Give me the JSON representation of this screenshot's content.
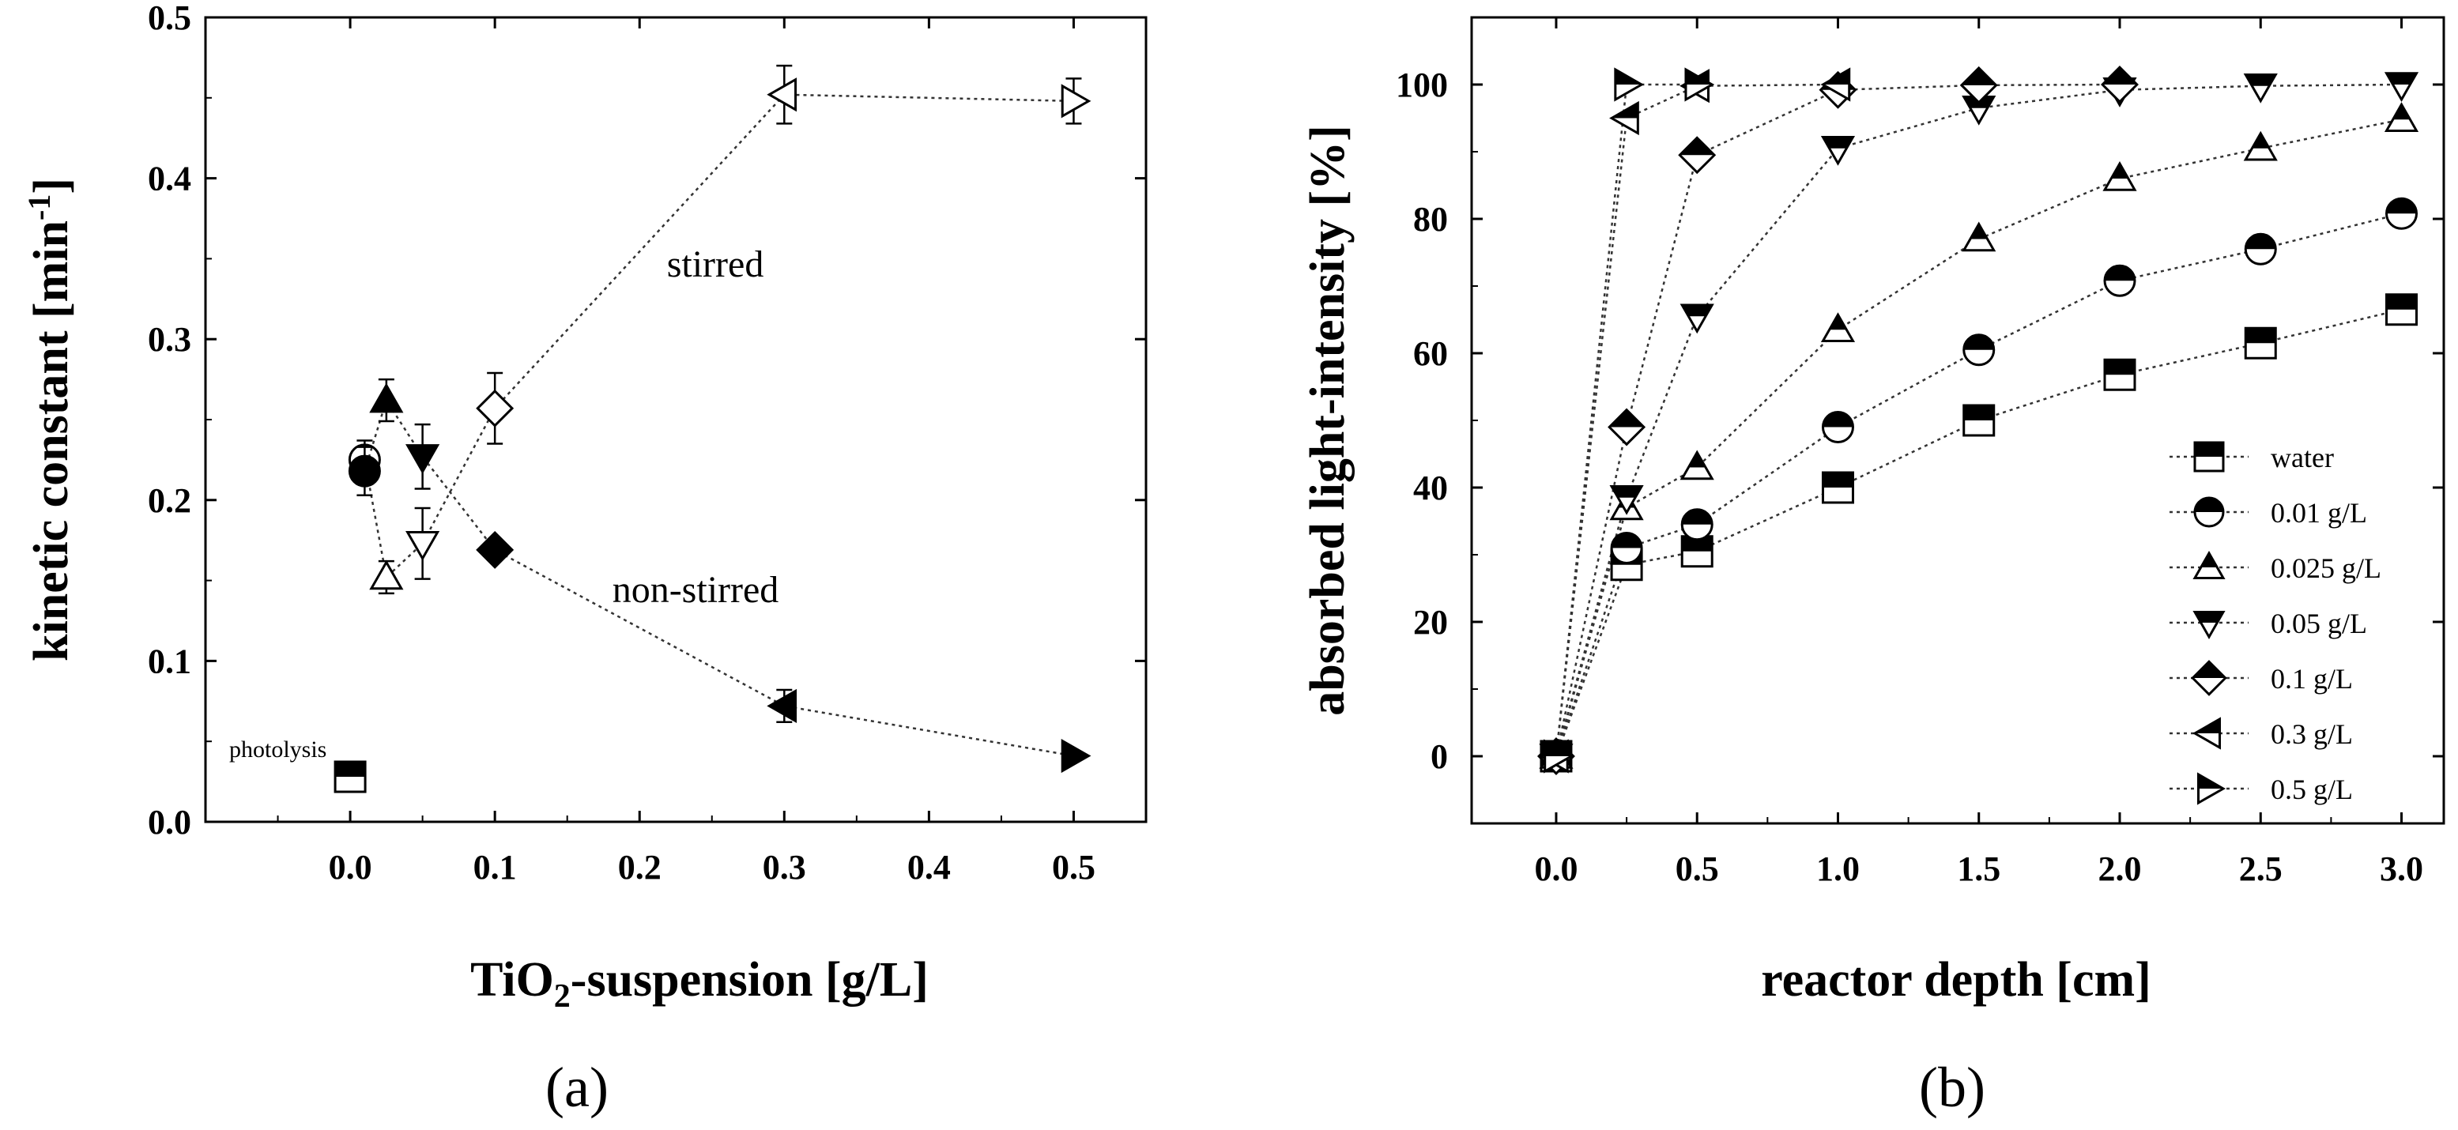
{
  "chart_data": [
    {
      "type": "scatter",
      "panel_label": "(a)",
      "xlabel_main": "TiO",
      "xlabel_sub": "2",
      "xlabel_rest": "-suspension [g/L]",
      "ylabel_main": "kinetic constant [min",
      "ylabel_sup": "-1",
      "ylabel_end": "]",
      "xlim": [
        -0.1,
        0.55
      ],
      "ylim": [
        0.0,
        0.5
      ],
      "xticks": [
        "0.0",
        "0.1",
        "0.2",
        "0.3",
        "0.4",
        "0.5"
      ],
      "yticks": [
        "0.0",
        "0.1",
        "0.2",
        "0.3",
        "0.4",
        "0.5"
      ],
      "annotations": {
        "stirred": "stirred",
        "non_stirred": "non-stirred",
        "photolysis": "photolysis"
      },
      "series": [
        {
          "name": "photolysis",
          "marker": "square",
          "fill": "half",
          "points": [
            {
              "x": 0.0,
              "y": 0.028,
              "err": 0.005
            }
          ]
        },
        {
          "name": "stirred",
          "line": true,
          "points": [
            {
              "x": 0.01,
              "y": 0.225,
              "err": 0.012,
              "marker": "circle",
              "fill": "open"
            },
            {
              "x": 0.025,
              "y": 0.152,
              "err": 0.01,
              "marker": "triangle-up",
              "fill": "open"
            },
            {
              "x": 0.05,
              "y": 0.173,
              "err": 0.022,
              "marker": "triangle-down",
              "fill": "open"
            },
            {
              "x": 0.1,
              "y": 0.257,
              "err": 0.022,
              "marker": "diamond",
              "fill": "open"
            },
            {
              "x": 0.3,
              "y": 0.452,
              "err": 0.018,
              "marker": "triangle-left",
              "fill": "open"
            },
            {
              "x": 0.5,
              "y": 0.448,
              "err": 0.014,
              "marker": "triangle-right",
              "fill": "open"
            }
          ]
        },
        {
          "name": "non-stirred",
          "line": true,
          "points": [
            {
              "x": 0.01,
              "y": 0.218,
              "err": 0.015,
              "marker": "circle",
              "fill": "solid"
            },
            {
              "x": 0.025,
              "y": 0.262,
              "err": 0.013,
              "marker": "triangle-up",
              "fill": "solid"
            },
            {
              "x": 0.05,
              "y": 0.227,
              "err": 0.02,
              "marker": "triangle-down",
              "fill": "solid"
            },
            {
              "x": 0.1,
              "y": 0.169,
              "err": 0.0,
              "marker": "diamond",
              "fill": "solid"
            },
            {
              "x": 0.3,
              "y": 0.072,
              "err": 0.01,
              "marker": "triangle-left",
              "fill": "solid"
            },
            {
              "x": 0.5,
              "y": 0.041,
              "err": 0.0,
              "marker": "triangle-right",
              "fill": "solid"
            }
          ]
        }
      ]
    },
    {
      "type": "line",
      "panel_label": "(b)",
      "xlabel": "reactor depth [cm]",
      "ylabel": "absorbed light-intensity [%]",
      "xlim": [
        -0.3,
        3.15
      ],
      "ylim": [
        -10,
        110
      ],
      "xticks": [
        "0.0",
        "0.5",
        "1.0",
        "1.5",
        "2.0",
        "2.5",
        "3.0"
      ],
      "yticks": [
        "0",
        "20",
        "40",
        "60",
        "80",
        "100"
      ],
      "legend_position": "bottom-right",
      "series": [
        {
          "name": "water",
          "marker": "square",
          "fill": "half",
          "x": [
            0.0,
            0.25,
            0.5,
            1.0,
            1.5,
            2.0,
            2.5,
            3.0
          ],
          "values": [
            0,
            28.5,
            30.5,
            40.0,
            50.0,
            56.8,
            61.5,
            66.5
          ]
        },
        {
          "name": "0.01 g/L",
          "marker": "circle",
          "fill": "half",
          "x": [
            0.0,
            0.25,
            0.5,
            1.0,
            1.5,
            2.0,
            2.5,
            3.0
          ],
          "values": [
            0,
            31.0,
            34.5,
            49.0,
            60.5,
            70.8,
            75.5,
            80.8
          ]
        },
        {
          "name": "0.025 g/L",
          "marker": "triangle-up",
          "fill": "half",
          "x": [
            0.0,
            0.25,
            0.5,
            1.0,
            1.5,
            2.0,
            2.5,
            3.0
          ],
          "values": [
            0,
            37.0,
            43.0,
            63.5,
            77.0,
            86.0,
            90.5,
            94.8
          ]
        },
        {
          "name": "0.05 g/L",
          "marker": "triangle-down",
          "fill": "half",
          "x": [
            0.0,
            0.25,
            0.5,
            1.0,
            1.5,
            2.0,
            2.5,
            3.0
          ],
          "values": [
            0,
            38.5,
            65.5,
            90.5,
            96.5,
            99.2,
            99.8,
            100.0
          ]
        },
        {
          "name": "0.1 g/L",
          "marker": "diamond",
          "fill": "half",
          "x": [
            0.0,
            0.25,
            0.5,
            1.0,
            1.5,
            2.0
          ],
          "values": [
            0,
            49.0,
            89.5,
            99.2,
            99.9,
            100.0
          ]
        },
        {
          "name": "0.3 g/L",
          "marker": "triangle-left",
          "fill": "half",
          "x": [
            0.0,
            0.25,
            0.5,
            1.0
          ],
          "values": [
            0,
            95.0,
            99.8,
            100.0
          ]
        },
        {
          "name": "0.5 g/L",
          "marker": "triangle-right",
          "fill": "half",
          "x": [
            0.0,
            0.25,
            0.5
          ],
          "values": [
            0,
            100.0,
            100.0
          ]
        }
      ]
    }
  ]
}
